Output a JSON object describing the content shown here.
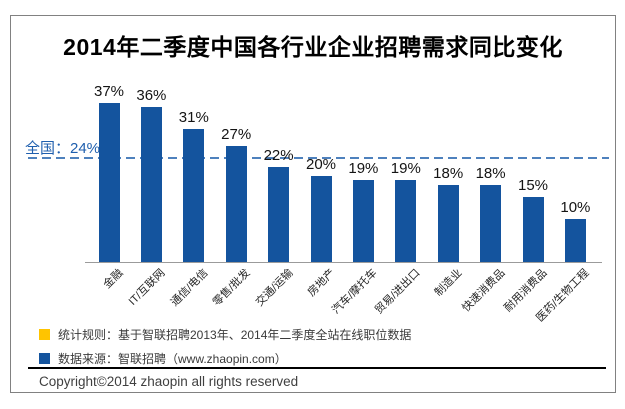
{
  "title": "2014年二季度中国各行业企业招聘需求同比变化",
  "chart_data": {
    "type": "bar",
    "categories": [
      "金融",
      "IT/互联网",
      "通信/电信",
      "零售/批发",
      "交通/运输",
      "房地产",
      "汽车/摩托车",
      "贸易/进出口",
      "制造业",
      "快速消费品",
      "耐用消费品",
      "医药/生物工程"
    ],
    "values": [
      37,
      36,
      31,
      27,
      22,
      20,
      19,
      19,
      18,
      18,
      15,
      10
    ],
    "value_labels": [
      "37%",
      "36%",
      "31%",
      "27%",
      "22%",
      "20%",
      "19%",
      "19%",
      "18%",
      "18%",
      "15%",
      "10%"
    ],
    "unit": "%",
    "ylim": [
      0,
      40
    ],
    "grid": "off",
    "reference_line": {
      "label": "全国：24%",
      "value": 24
    },
    "bar_color": "#14549E",
    "reference_line_color": "#4E81BD",
    "reference_label_color": "#1F5FAE"
  },
  "legend": {
    "items": [
      {
        "swatch_color": "#FFC400",
        "text": "统计规则：基于智联招聘2013年、2014年二季度全站在线职位数据"
      },
      {
        "swatch_color": "#14549E",
        "text": "数据来源：智联招聘（www.zhaopin.com）"
      }
    ]
  },
  "footer": {
    "copyright": "Copyright©2014 zhaopin all rights reserved"
  }
}
